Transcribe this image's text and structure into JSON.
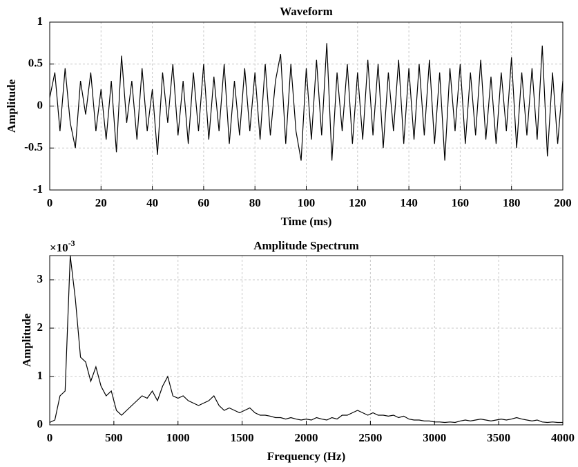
{
  "chart_data": [
    {
      "type": "line",
      "title": "Waveform",
      "x_label": "Time (ms)",
      "y_label": "Amplitude",
      "grid": true,
      "xlim": [
        0,
        200
      ],
      "ylim": [
        -1,
        1
      ],
      "xticks": [
        0,
        20,
        40,
        60,
        80,
        100,
        120,
        140,
        160,
        180,
        200
      ],
      "yticks": [
        -1,
        -0.5,
        0,
        0.5,
        1
      ],
      "x": [
        0,
        2,
        4,
        6,
        8,
        10,
        12,
        14,
        16,
        18,
        20,
        22,
        24,
        26,
        28,
        30,
        32,
        34,
        36,
        38,
        40,
        42,
        44,
        46,
        48,
        50,
        52,
        54,
        56,
        58,
        60,
        62,
        64,
        66,
        68,
        70,
        72,
        74,
        76,
        78,
        80,
        82,
        84,
        86,
        88,
        90,
        92,
        94,
        96,
        98,
        100,
        102,
        104,
        106,
        108,
        110,
        112,
        114,
        116,
        118,
        120,
        122,
        124,
        126,
        128,
        130,
        132,
        134,
        136,
        138,
        140,
        142,
        144,
        146,
        148,
        150,
        152,
        154,
        156,
        158,
        160,
        162,
        164,
        166,
        168,
        170,
        172,
        174,
        176,
        178,
        180,
        182,
        184,
        186,
        188,
        190,
        192,
        194,
        196,
        198,
        200
      ],
      "series": [
        {
          "color": "#000000",
          "values": [
            0.1,
            0.4,
            -0.3,
            0.45,
            -0.2,
            -0.5,
            0.3,
            -0.1,
            0.4,
            -0.3,
            0.2,
            -0.4,
            0.3,
            -0.55,
            0.6,
            -0.2,
            0.3,
            -0.4,
            0.45,
            -0.3,
            0.2,
            -0.58,
            0.4,
            -0.2,
            0.5,
            -0.35,
            0.3,
            -0.45,
            0.4,
            -0.3,
            0.5,
            -0.4,
            0.35,
            -0.3,
            0.5,
            -0.45,
            0.3,
            -0.35,
            0.45,
            -0.3,
            0.4,
            -0.4,
            0.5,
            -0.35,
            0.3,
            0.62,
            -0.45,
            0.5,
            -0.3,
            -0.65,
            0.45,
            -0.4,
            0.55,
            -0.35,
            0.75,
            -0.65,
            0.4,
            -0.3,
            0.5,
            -0.45,
            0.4,
            -0.4,
            0.55,
            -0.35,
            0.5,
            -0.5,
            0.4,
            -0.3,
            0.55,
            -0.45,
            0.45,
            -0.4,
            0.5,
            -0.35,
            0.55,
            -0.45,
            0.4,
            -0.65,
            0.45,
            -0.3,
            0.5,
            -0.45,
            0.4,
            -0.35,
            0.55,
            -0.4,
            0.35,
            -0.45,
            0.4,
            -0.3,
            0.58,
            -0.5,
            0.4,
            -0.35,
            0.45,
            -0.4,
            0.72,
            -0.6,
            0.4,
            -0.45,
            0.3
          ]
        }
      ]
    },
    {
      "type": "line",
      "title": "Amplitude Spectrum",
      "x_label": "Frequency (Hz)",
      "y_label": "Amplitude",
      "grid": true,
      "y_multiplier": {
        "base": "×10",
        "exponent": "-3"
      },
      "xlim": [
        0,
        4000
      ],
      "ylim": [
        0,
        3.5
      ],
      "xticks": [
        0,
        500,
        1000,
        1500,
        2000,
        2500,
        3000,
        3500,
        4000
      ],
      "yticks": [
        0,
        1,
        2,
        3
      ],
      "x": [
        0,
        40,
        80,
        120,
        160,
        200,
        240,
        280,
        320,
        360,
        400,
        440,
        480,
        520,
        560,
        600,
        640,
        680,
        720,
        760,
        800,
        840,
        880,
        920,
        960,
        1000,
        1040,
        1080,
        1120,
        1160,
        1200,
        1240,
        1280,
        1320,
        1360,
        1400,
        1440,
        1480,
        1520,
        1560,
        1600,
        1640,
        1680,
        1720,
        1760,
        1800,
        1840,
        1880,
        1920,
        1960,
        2000,
        2040,
        2080,
        2120,
        2160,
        2200,
        2240,
        2280,
        2320,
        2360,
        2400,
        2440,
        2480,
        2520,
        2560,
        2600,
        2640,
        2680,
        2720,
        2760,
        2800,
        2840,
        2880,
        2920,
        2960,
        3000,
        3040,
        3080,
        3120,
        3160,
        3200,
        3240,
        3280,
        3320,
        3360,
        3400,
        3440,
        3480,
        3520,
        3560,
        3600,
        3640,
        3680,
        3720,
        3760,
        3800,
        3840,
        3880,
        3920,
        3960,
        4000
      ],
      "series": [
        {
          "color": "#000000",
          "values": [
            0.05,
            0.1,
            0.6,
            0.7,
            3.5,
            2.6,
            1.4,
            1.3,
            0.9,
            1.2,
            0.8,
            0.6,
            0.7,
            0.3,
            0.2,
            0.3,
            0.4,
            0.5,
            0.6,
            0.55,
            0.7,
            0.5,
            0.8,
            1.0,
            0.6,
            0.55,
            0.6,
            0.5,
            0.45,
            0.4,
            0.45,
            0.5,
            0.6,
            0.4,
            0.3,
            0.35,
            0.3,
            0.25,
            0.3,
            0.35,
            0.25,
            0.2,
            0.2,
            0.18,
            0.15,
            0.15,
            0.12,
            0.15,
            0.12,
            0.1,
            0.12,
            0.1,
            0.15,
            0.12,
            0.1,
            0.15,
            0.12,
            0.2,
            0.2,
            0.25,
            0.3,
            0.25,
            0.2,
            0.25,
            0.2,
            0.2,
            0.18,
            0.2,
            0.15,
            0.18,
            0.12,
            0.1,
            0.1,
            0.08,
            0.08,
            0.06,
            0.06,
            0.05,
            0.06,
            0.05,
            0.08,
            0.1,
            0.08,
            0.1,
            0.12,
            0.1,
            0.08,
            0.1,
            0.12,
            0.1,
            0.12,
            0.15,
            0.12,
            0.1,
            0.08,
            0.1,
            0.06,
            0.05,
            0.06,
            0.05,
            0.05
          ]
        }
      ]
    }
  ]
}
